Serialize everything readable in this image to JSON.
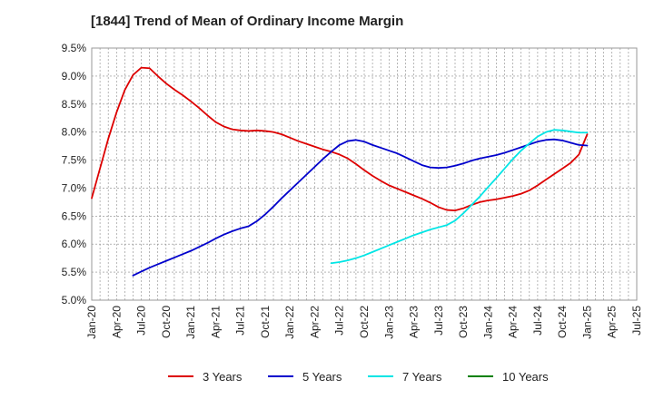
{
  "chart_data": {
    "type": "line",
    "title": "[1844]  Trend of Mean of Ordinary Income Margin",
    "xlabel": "",
    "ylabel": "",
    "x_ticks": [
      "Jan-20",
      "Apr-20",
      "Jul-20",
      "Oct-20",
      "Jan-21",
      "Apr-21",
      "Jul-21",
      "Oct-21",
      "Jan-22",
      "Apr-22",
      "Jul-22",
      "Oct-22",
      "Jan-23",
      "Apr-23",
      "Jul-23",
      "Oct-23",
      "Jan-24",
      "Apr-24",
      "Jul-24",
      "Oct-24",
      "Jan-25",
      "Apr-25",
      "Jul-25"
    ],
    "y_ticks": [
      "5.0%",
      "5.5%",
      "6.0%",
      "6.5%",
      "7.0%",
      "7.5%",
      "8.0%",
      "8.5%",
      "9.0%",
      "9.5%"
    ],
    "ylim": [
      5.0,
      9.5
    ],
    "y_unit": "%",
    "grid": true,
    "legend_position": "bottom",
    "series": [
      {
        "name": "3 Years",
        "color": "#dd0000",
        "x": [
          "2020-01",
          "2020-02",
          "2020-03",
          "2020-04",
          "2020-05",
          "2020-06",
          "2020-07",
          "2020-08",
          "2020-09",
          "2020-10",
          "2020-11",
          "2020-12",
          "2021-01",
          "2021-02",
          "2021-03",
          "2021-04",
          "2021-05",
          "2021-06",
          "2021-07",
          "2021-08",
          "2021-09",
          "2021-10",
          "2021-11",
          "2021-12",
          "2022-01",
          "2022-02",
          "2022-03",
          "2022-04",
          "2022-05",
          "2022-06",
          "2022-07",
          "2022-08",
          "2022-09",
          "2022-10",
          "2022-11",
          "2022-12",
          "2023-01",
          "2023-02",
          "2023-03",
          "2023-04",
          "2023-05",
          "2023-06",
          "2023-07",
          "2023-08",
          "2023-09",
          "2023-10",
          "2023-11",
          "2023-12",
          "2024-01",
          "2024-02",
          "2024-03",
          "2024-04",
          "2024-05",
          "2024-06",
          "2024-07",
          "2024-08",
          "2024-09",
          "2024-10",
          "2024-11",
          "2024-12",
          "2025-01"
        ],
        "values": [
          6.82,
          7.35,
          7.88,
          8.35,
          8.75,
          9.02,
          9.15,
          9.14,
          9.0,
          8.87,
          8.76,
          8.66,
          8.55,
          8.43,
          8.3,
          8.18,
          8.1,
          8.05,
          8.03,
          8.02,
          8.03,
          8.02,
          8.0,
          7.96,
          7.9,
          7.84,
          7.79,
          7.74,
          7.69,
          7.65,
          7.6,
          7.53,
          7.43,
          7.32,
          7.22,
          7.13,
          7.05,
          6.99,
          6.93,
          6.87,
          6.81,
          6.74,
          6.66,
          6.61,
          6.6,
          6.64,
          6.7,
          6.75,
          6.78,
          6.8,
          6.83,
          6.86,
          6.9,
          6.96,
          7.05,
          7.15,
          7.25,
          7.35,
          7.45,
          7.6,
          7.96
        ]
      },
      {
        "name": "5 Years",
        "color": "#0000cc",
        "x": [
          "2020-06",
          "2020-07",
          "2020-08",
          "2020-09",
          "2020-10",
          "2020-11",
          "2020-12",
          "2021-01",
          "2021-02",
          "2021-03",
          "2021-04",
          "2021-05",
          "2021-06",
          "2021-07",
          "2021-08",
          "2021-09",
          "2021-10",
          "2021-11",
          "2021-12",
          "2022-01",
          "2022-02",
          "2022-03",
          "2022-04",
          "2022-05",
          "2022-06",
          "2022-07",
          "2022-08",
          "2022-09",
          "2022-10",
          "2022-11",
          "2022-12",
          "2023-01",
          "2023-02",
          "2023-03",
          "2023-04",
          "2023-05",
          "2023-06",
          "2023-07",
          "2023-08",
          "2023-09",
          "2023-10",
          "2023-11",
          "2023-12",
          "2024-01",
          "2024-02",
          "2024-03",
          "2024-04",
          "2024-05",
          "2024-06",
          "2024-07",
          "2024-08",
          "2024-09",
          "2024-10",
          "2024-11",
          "2024-12",
          "2025-01"
        ],
        "values": [
          5.44,
          5.51,
          5.58,
          5.64,
          5.7,
          5.76,
          5.82,
          5.88,
          5.95,
          6.02,
          6.1,
          6.17,
          6.23,
          6.28,
          6.32,
          6.41,
          6.53,
          6.67,
          6.82,
          6.96,
          7.1,
          7.24,
          7.38,
          7.52,
          7.65,
          7.77,
          7.84,
          7.86,
          7.83,
          7.77,
          7.72,
          7.67,
          7.62,
          7.55,
          7.48,
          7.41,
          7.37,
          7.36,
          7.37,
          7.4,
          7.44,
          7.49,
          7.53,
          7.56,
          7.59,
          7.63,
          7.68,
          7.73,
          7.78,
          7.83,
          7.86,
          7.87,
          7.85,
          7.81,
          7.77,
          7.76
        ]
      },
      {
        "name": "7 Years",
        "color": "#00e5e5",
        "x": [
          "2022-06",
          "2022-07",
          "2022-08",
          "2022-09",
          "2022-10",
          "2022-11",
          "2022-12",
          "2023-01",
          "2023-02",
          "2023-03",
          "2023-04",
          "2023-05",
          "2023-06",
          "2023-07",
          "2023-08",
          "2023-09",
          "2023-10",
          "2023-11",
          "2023-12",
          "2024-01",
          "2024-02",
          "2024-03",
          "2024-04",
          "2024-05",
          "2024-06",
          "2024-07",
          "2024-08",
          "2024-09",
          "2024-10",
          "2024-11",
          "2024-12",
          "2025-01"
        ],
        "values": [
          5.66,
          5.68,
          5.71,
          5.75,
          5.8,
          5.86,
          5.92,
          5.98,
          6.04,
          6.1,
          6.16,
          6.21,
          6.26,
          6.3,
          6.34,
          6.42,
          6.55,
          6.7,
          6.85,
          7.02,
          7.18,
          7.35,
          7.52,
          7.67,
          7.8,
          7.92,
          8.0,
          8.04,
          8.03,
          8.01,
          7.99,
          7.99
        ]
      },
      {
        "name": "10 Years",
        "color": "#008000",
        "x": [],
        "values": []
      }
    ]
  }
}
